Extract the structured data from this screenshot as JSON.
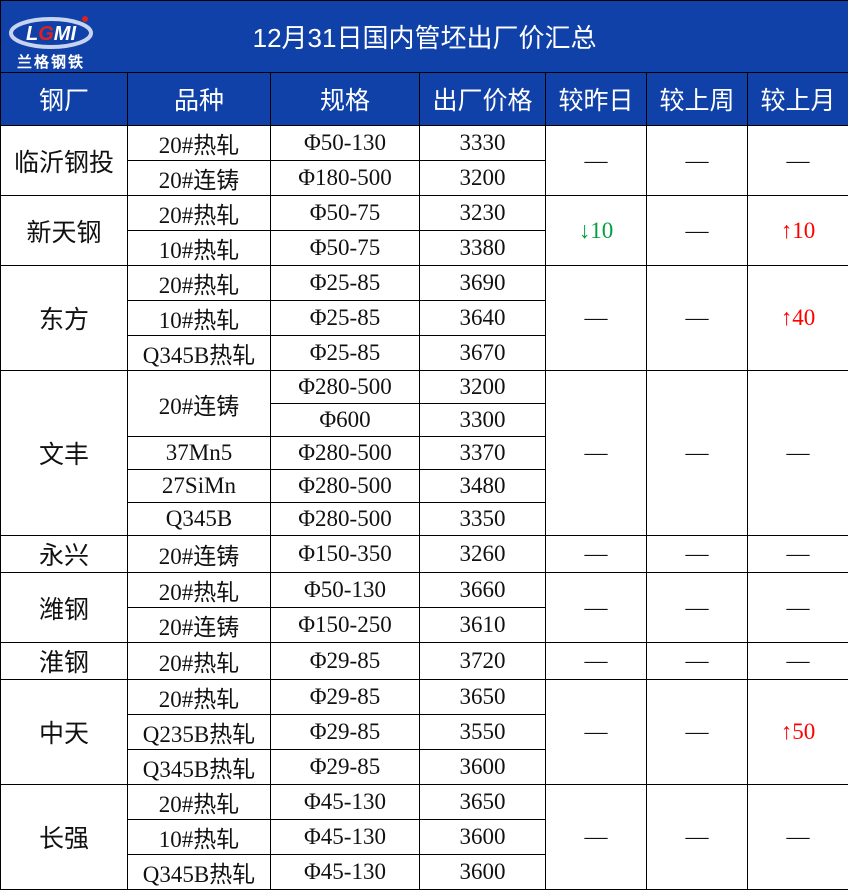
{
  "title": "12月31日国内管坯出厂价汇总",
  "logo": {
    "text": "LGMI",
    "subtitle": "兰格钢铁"
  },
  "columns": [
    "钢厂",
    "品种",
    "规格",
    "出厂价格",
    "较昨日",
    "较上周",
    "较上月"
  ],
  "colors": {
    "header_bg": "#1041a8",
    "down": "#00a040",
    "up": "#ff0000"
  },
  "groups": [
    {
      "mill": "临沂钢投",
      "rows": [
        [
          "20#热轧",
          "Φ50-130",
          "3330"
        ],
        [
          "20#连铸",
          "Φ180-500",
          "3200"
        ]
      ],
      "day": "—",
      "week": "—",
      "month": "—"
    },
    {
      "mill": "新天钢",
      "rows": [
        [
          "20#热轧",
          "Φ50-75",
          "3230"
        ],
        [
          "10#热轧",
          "Φ50-75",
          "3380"
        ]
      ],
      "day": "↓10",
      "week": "—",
      "month": "↑10"
    },
    {
      "mill": "东方",
      "rows": [
        [
          "20#热轧",
          "Φ25-85",
          "3690"
        ],
        [
          "10#热轧",
          "Φ25-85",
          "3640"
        ],
        [
          "Q345B热轧",
          "Φ25-85",
          "3670"
        ]
      ],
      "day": "—",
      "week": "—",
      "month": "↑40"
    },
    {
      "mill": "文丰",
      "rows": [
        [
          "20#连铸",
          "Φ280-500",
          "3200"
        ],
        [
          "",
          "Φ600",
          "3300"
        ],
        [
          "37Mn5",
          "Φ280-500",
          "3370"
        ],
        [
          "27SiMn",
          "Φ280-500",
          "3480"
        ],
        [
          "Q345B",
          "Φ280-500",
          "3350"
        ]
      ],
      "merge_variety": [
        0,
        2
      ],
      "day": "—",
      "week": "—",
      "month": "—"
    },
    {
      "mill": "永兴",
      "rows": [
        [
          "20#连铸",
          "Φ150-350",
          "3260"
        ]
      ],
      "day": "—",
      "week": "—",
      "month": "—"
    },
    {
      "mill": "潍钢",
      "rows": [
        [
          "20#热轧",
          "Φ50-130",
          "3660"
        ],
        [
          "20#连铸",
          "Φ150-250",
          "3610"
        ]
      ],
      "day": "—",
      "week": "—",
      "month": "—"
    },
    {
      "mill": "淮钢",
      "rows": [
        [
          "20#热轧",
          "Φ29-85",
          "3720"
        ]
      ],
      "day": "—",
      "week": "—",
      "month": "—"
    },
    {
      "mill": "中天",
      "rows": [
        [
          "20#热轧",
          "Φ29-85",
          "3650"
        ],
        [
          "Q235B热轧",
          "Φ29-85",
          "3550"
        ],
        [
          "Q345B热轧",
          "Φ29-85",
          "3600"
        ]
      ],
      "day": "—",
      "week": "—",
      "month": "↑50"
    },
    {
      "mill": "长强",
      "rows": [
        [
          "20#热轧",
          "Φ45-130",
          "3650"
        ],
        [
          "10#热轧",
          "Φ45-130",
          "3600"
        ],
        [
          "Q345B热轧",
          "Φ45-130",
          "3600"
        ]
      ],
      "day": "—",
      "week": "—",
      "month": "—"
    }
  ]
}
